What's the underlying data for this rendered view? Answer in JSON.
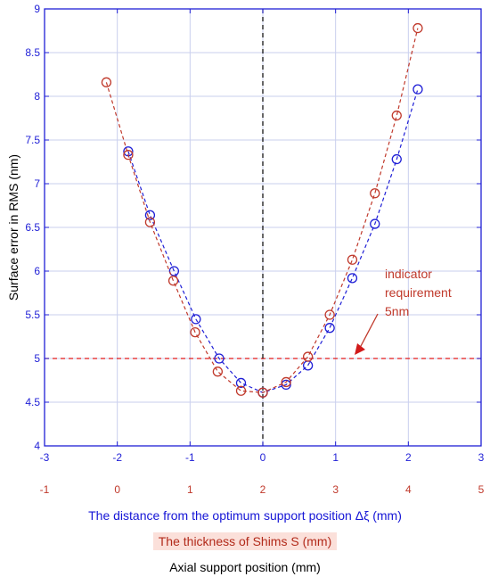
{
  "chart_data": {
    "type": "line",
    "ylabel": "Surface error in RMS (nm)",
    "xlabel": "The distance from the optimum support position  Δξ (mm)",
    "xlabel2": "The thickness of Shims S (mm)",
    "xlabel3": "Axial support position (mm)",
    "xlim": [
      -3,
      3
    ],
    "ylim": [
      4,
      9
    ],
    "x_ticks": [
      "-3",
      "-2",
      "-1",
      "0",
      "1",
      "2",
      "3"
    ],
    "x_ticks_secondary": [
      "-1",
      "0",
      "1",
      "2",
      "3",
      "4",
      "5"
    ],
    "y_ticks": [
      "4",
      "4.5",
      "5",
      "5.5",
      "6",
      "6.5",
      "7",
      "7.5",
      "8",
      "8.5",
      "9"
    ],
    "grid": true,
    "series": [
      {
        "color": "#1f1fd6",
        "x": [
          -1.85,
          -1.55,
          -1.22,
          -0.92,
          -0.6,
          -0.3,
          0.0,
          0.32,
          0.62,
          0.92,
          1.23,
          1.54,
          1.84,
          2.13
        ],
        "y": [
          7.37,
          6.64,
          6.0,
          5.45,
          5.0,
          4.72,
          4.61,
          4.7,
          4.92,
          5.35,
          5.92,
          6.54,
          7.28,
          8.08
        ]
      },
      {
        "color": "#c0392b",
        "x": [
          -2.15,
          -1.85,
          -1.55,
          -1.23,
          -0.93,
          -0.62,
          -0.3,
          0.0,
          0.32,
          0.62,
          0.92,
          1.23,
          1.54,
          1.84,
          2.13
        ],
        "y": [
          8.16,
          7.33,
          6.56,
          5.89,
          5.3,
          4.85,
          4.63,
          4.61,
          4.73,
          5.02,
          5.5,
          6.13,
          6.89,
          7.78,
          8.78
        ]
      }
    ],
    "reference_lines": [
      {
        "orientation": "horizontal",
        "value": 5,
        "color": "#e01b1b"
      },
      {
        "orientation": "vertical",
        "value": 0,
        "color": "#000000"
      }
    ],
    "annotation": {
      "lines": [
        "indicator",
        "requirement",
        "5nm"
      ],
      "color": "#c0392b",
      "arrow_to": [
        1.2,
        5.0
      ]
    },
    "axis_color": "#1f1fd6",
    "grid_color": "#c9cfee"
  }
}
